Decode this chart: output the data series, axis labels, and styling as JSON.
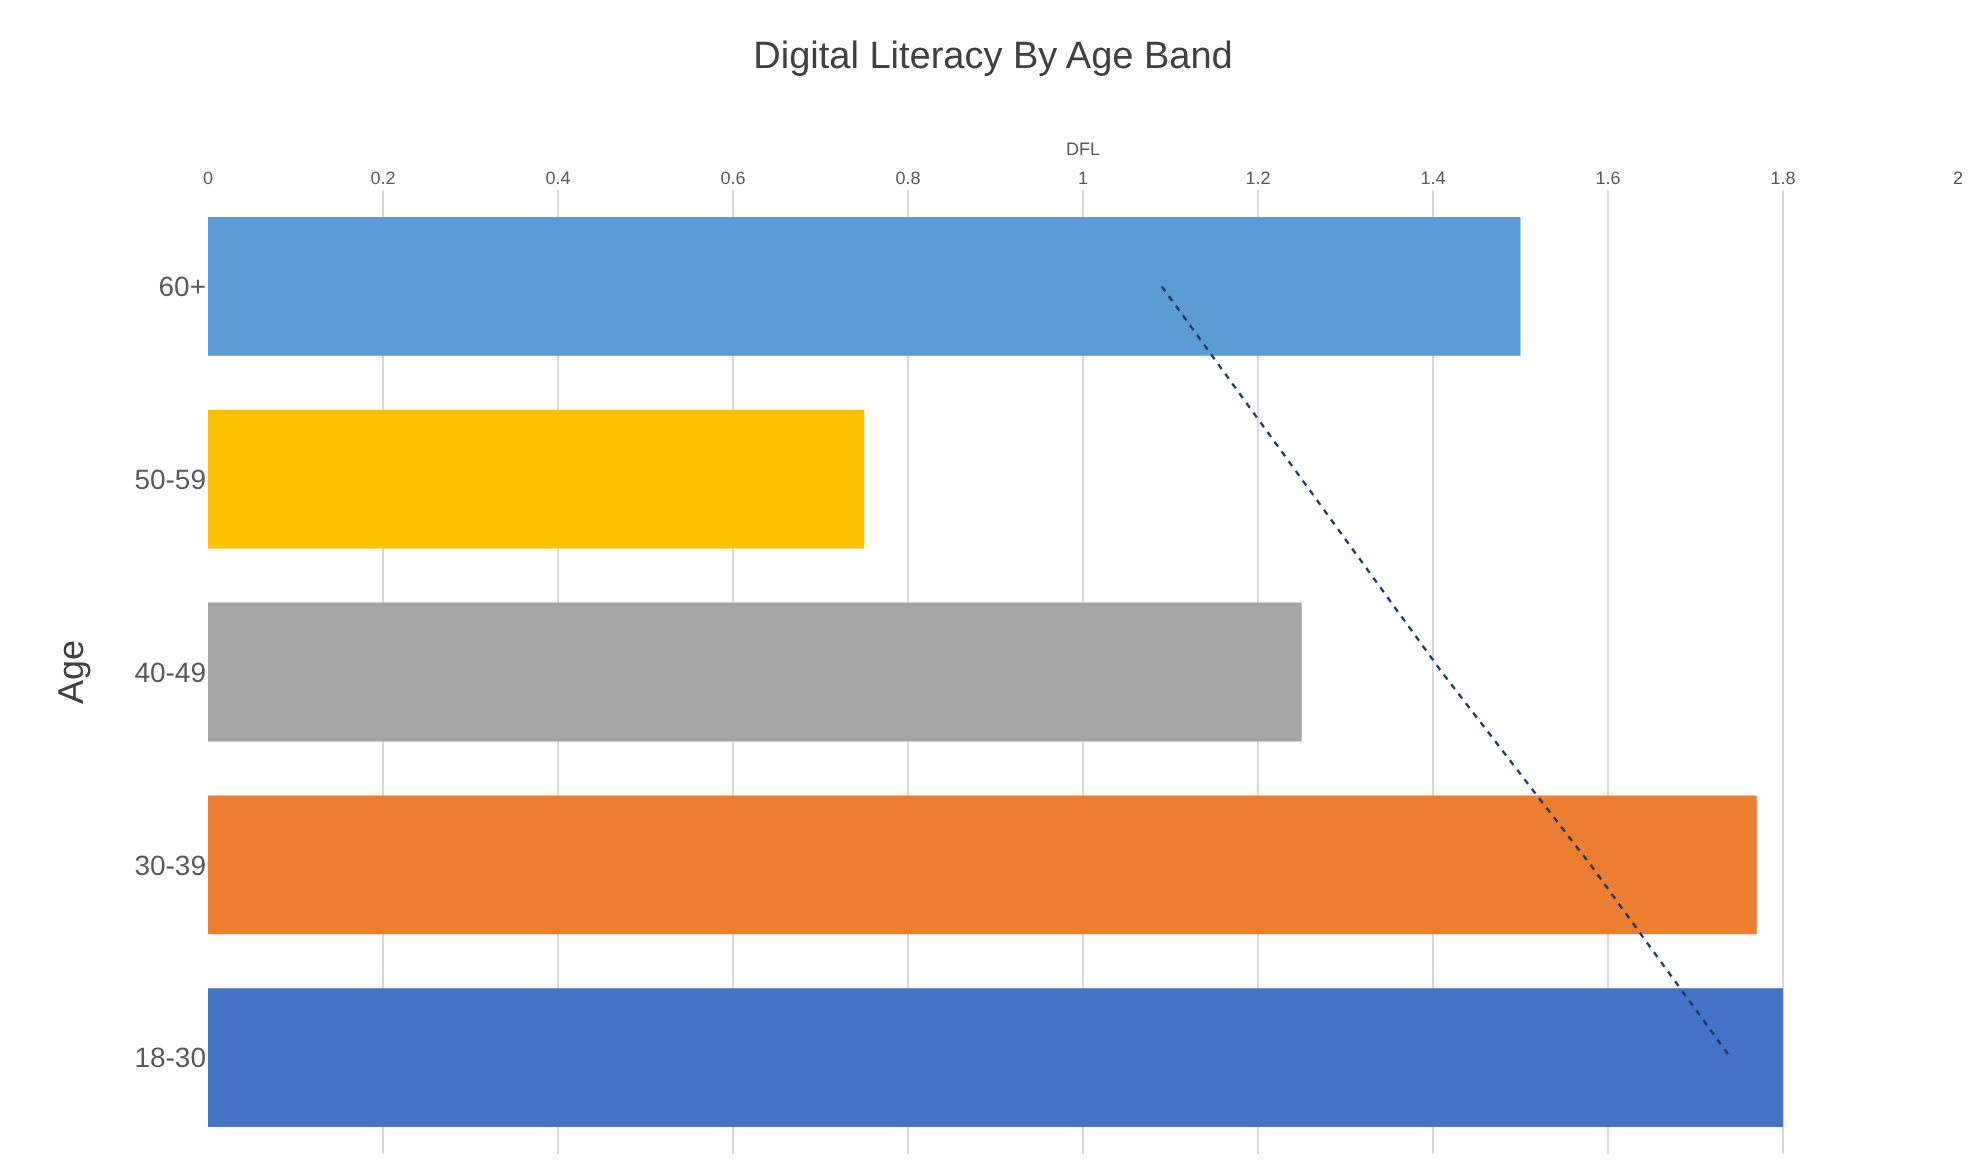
{
  "chart_data": {
    "type": "bar",
    "orientation": "horizontal",
    "title": "Digital Literacy By Age Band",
    "xlabel": "DFL",
    "ylabel": "Age",
    "categories": [
      "60+",
      "50-59",
      "40-49",
      "30-39",
      "18-30"
    ],
    "series": [
      {
        "colors": [
          "#5b9bd5",
          "#ffc000",
          "#a5a5a5",
          "#ed7d31",
          "#4472c4"
        ],
        "values": [
          1.5,
          0.75,
          1.25,
          1.77,
          1.8
        ]
      },
      {
        "type": "line",
        "color": "#1f3864",
        "line_style": "dotted",
        "values": [
          1.09,
          1.25,
          1.41,
          1.58,
          1.74
        ]
      }
    ],
    "xlim": [
      0,
      2
    ],
    "xticks": [
      0,
      0.2,
      0.4,
      0.6,
      0.8,
      1,
      1.2,
      1.4,
      1.6,
      1.8,
      2
    ],
    "grid": "x"
  }
}
